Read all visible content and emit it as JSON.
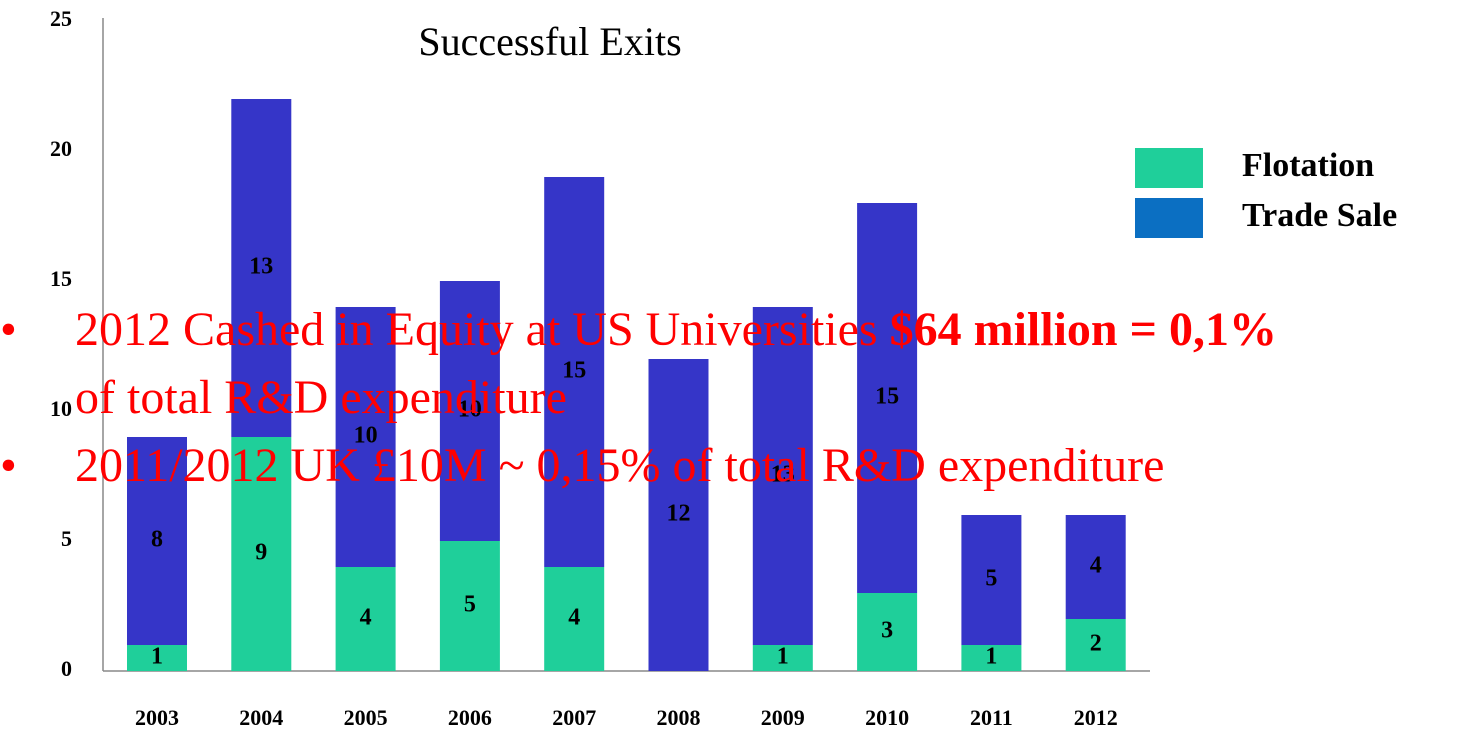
{
  "chart_data": {
    "type": "stacked_bar",
    "title": "Successful Exits",
    "categories": [
      "2003",
      "2004",
      "2005",
      "2006",
      "2007",
      "2008",
      "2009",
      "2010",
      "2011",
      "2012"
    ],
    "series": [
      {
        "name": "Flotation",
        "color": "#1fcf9a",
        "legend_color": "#1fcf9a",
        "values": [
          1,
          9,
          4,
          5,
          4,
          0,
          1,
          3,
          1,
          2
        ]
      },
      {
        "name": "Trade Sale",
        "color": "#3535c8",
        "legend_color": "#0b6fc2",
        "values": [
          8,
          13,
          10,
          10,
          15,
          12,
          13,
          15,
          5,
          4
        ]
      }
    ],
    "ylim": [
      0,
      25
    ],
    "yticks": [
      0,
      5,
      10,
      15,
      20,
      25
    ],
    "grid": false,
    "legend": "right",
    "annotations": [
      {
        "runs": [
          {
            "text": "2012 Cashed in Equity at US Universities ",
            "bold": false
          },
          {
            "text": "$64 million = 0,1%",
            "bold": true
          },
          {
            "text": " of total R&D expenditure",
            "bold": false
          }
        ]
      },
      {
        "runs": [
          {
            "text": "2011/2012 UK £10M ~ 0,15% of total R&D expenditure",
            "bold": false
          }
        ]
      }
    ]
  }
}
